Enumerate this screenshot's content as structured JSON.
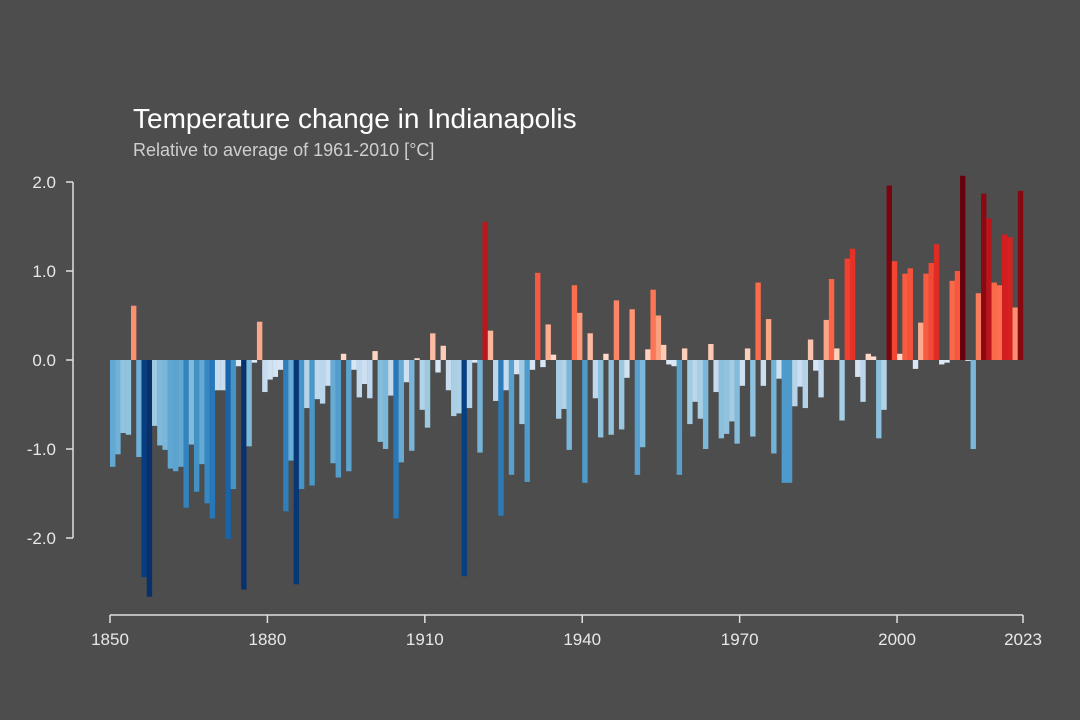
{
  "chart_data": {
    "type": "bar",
    "title": "Temperature change in Indianapolis",
    "subtitle": "Relative to average of 1961-2010  [°C]",
    "xlabel": "",
    "ylabel": "",
    "xlim": [
      1850,
      2023
    ],
    "ylim": [
      -2.7,
      2.1
    ],
    "y_ticks": [
      2.0,
      1.0,
      0.0,
      -1.0,
      -2.0
    ],
    "y_tick_labels": [
      "2.0",
      "1.0",
      "0.0",
      "-1.0",
      "-2.0"
    ],
    "x_ticks": [
      1850,
      1880,
      1910,
      1940,
      1970,
      2000,
      2023
    ],
    "x_tick_labels": [
      "1850",
      "1880",
      "1910",
      "1940",
      "1970",
      "2000",
      "2023"
    ],
    "grid": false,
    "legend": "none",
    "color_scale": {
      "cold": "#08306b",
      "neutral_cold": "#deebf7",
      "neutral_warm": "#fee0d2",
      "hot": "#67000d"
    },
    "series": [
      {
        "x": [
          1850,
          1851,
          1852,
          1853,
          1854,
          1855,
          1856,
          1857,
          1858,
          1859,
          1860,
          1861,
          1862,
          1863,
          1864,
          1865,
          1866,
          1867,
          1868,
          1869,
          1870,
          1871,
          1872,
          1873,
          1874,
          1875,
          1876,
          1877,
          1878,
          1879,
          1880,
          1881,
          1882,
          1883,
          1884,
          1885,
          1886,
          1887,
          1888,
          1889,
          1890,
          1891,
          1892,
          1893,
          1894,
          1895,
          1896,
          1897,
          1898,
          1899,
          1900,
          1901,
          1902,
          1903,
          1904,
          1905,
          1906,
          1907,
          1908,
          1909,
          1910,
          1911,
          1912,
          1913,
          1914,
          1915,
          1916,
          1917,
          1918,
          1919,
          1920,
          1921,
          1922,
          1923,
          1924,
          1925,
          1926,
          1927,
          1928,
          1929,
          1930,
          1931,
          1932,
          1933,
          1934,
          1935,
          1936,
          1937,
          1938,
          1939,
          1940,
          1941,
          1942,
          1943,
          1944,
          1945,
          1946,
          1947,
          1948,
          1949,
          1950,
          1951,
          1952,
          1953,
          1954,
          1955,
          1956,
          1957,
          1958,
          1959,
          1960,
          1961,
          1962,
          1963,
          1964,
          1965,
          1966,
          1967,
          1968,
          1969,
          1970,
          1971,
          1972,
          1973,
          1974,
          1975,
          1976,
          1977,
          1978,
          1979,
          1980,
          1981,
          1982,
          1983,
          1984,
          1985,
          1986,
          1987,
          1988,
          1989,
          1990,
          1991,
          1992,
          1993,
          1994,
          1995,
          1996,
          1997,
          1998,
          1999,
          2000,
          2001,
          2002,
          2003,
          2004,
          2005,
          2006,
          2007,
          2008,
          2009,
          2010,
          2011,
          2012,
          2013,
          2014,
          2015,
          2016,
          2017,
          2018,
          2019,
          2020,
          2021,
          2022,
          2023
        ],
        "values": [
          -1.2,
          -1.06,
          -0.82,
          -0.84,
          0.61,
          -1.09,
          -2.44,
          -2.66,
          -0.74,
          -0.96,
          -1.01,
          -1.22,
          -1.25,
          -1.2,
          -1.66,
          -0.95,
          -1.48,
          -1.17,
          -1.61,
          -1.78,
          -0.34,
          -0.34,
          -2.01,
          -1.45,
          -0.07,
          -2.58,
          -0.97,
          -0.03,
          0.43,
          -0.36,
          -0.22,
          -0.19,
          -0.11,
          -1.7,
          -1.13,
          -2.52,
          -1.45,
          -0.54,
          -1.41,
          -0.44,
          -0.49,
          -0.29,
          -1.16,
          -1.32,
          0.07,
          -1.25,
          -0.11,
          -0.42,
          -0.27,
          -0.43,
          0.1,
          -0.92,
          -1.0,
          -0.4,
          -1.78,
          -1.15,
          -0.25,
          -1.02,
          0.02,
          -0.56,
          -0.76,
          0.3,
          -0.14,
          0.16,
          -0.34,
          -0.63,
          -0.6,
          -2.43,
          -0.54,
          -0.03,
          -1.04,
          1.55,
          0.33,
          -0.46,
          -1.75,
          -0.34,
          -1.29,
          -0.16,
          -0.72,
          -1.37,
          -0.11,
          0.98,
          -0.08,
          0.4,
          0.06,
          -0.66,
          -0.55,
          -1.01,
          0.84,
          0.53,
          -1.38,
          0.3,
          -0.43,
          -0.87,
          0.07,
          -0.84,
          0.67,
          -0.78,
          -0.2,
          0.57,
          -1.29,
          -0.98,
          0.12,
          0.79,
          0.5,
          0.17,
          -0.05,
          -0.07,
          -1.29,
          0.13,
          -0.72,
          -0.47,
          -0.66,
          -1.0,
          0.18,
          -0.36,
          -0.88,
          -0.83,
          -0.69,
          -0.94,
          -0.29,
          0.13,
          -0.86,
          0.87,
          -0.29,
          0.46,
          -1.05,
          -0.21,
          -1.38,
          -1.38,
          -0.52,
          -0.3,
          -0.54,
          0.23,
          -0.12,
          -0.42,
          0.45,
          0.91,
          0.13,
          -0.68,
          1.14,
          1.25,
          -0.19,
          -0.47,
          0.07,
          0.04,
          -0.88,
          -0.56,
          1.96,
          1.11,
          0.07,
          0.97,
          1.03,
          -0.1,
          0.42,
          0.97,
          1.09,
          1.3,
          -0.05,
          -0.03,
          0.89,
          1.0,
          2.07,
          -0.01,
          -1.0,
          0.75,
          1.87,
          1.59,
          0.87,
          0.84,
          1.41,
          1.38,
          0.59,
          1.9
        ]
      }
    ]
  }
}
